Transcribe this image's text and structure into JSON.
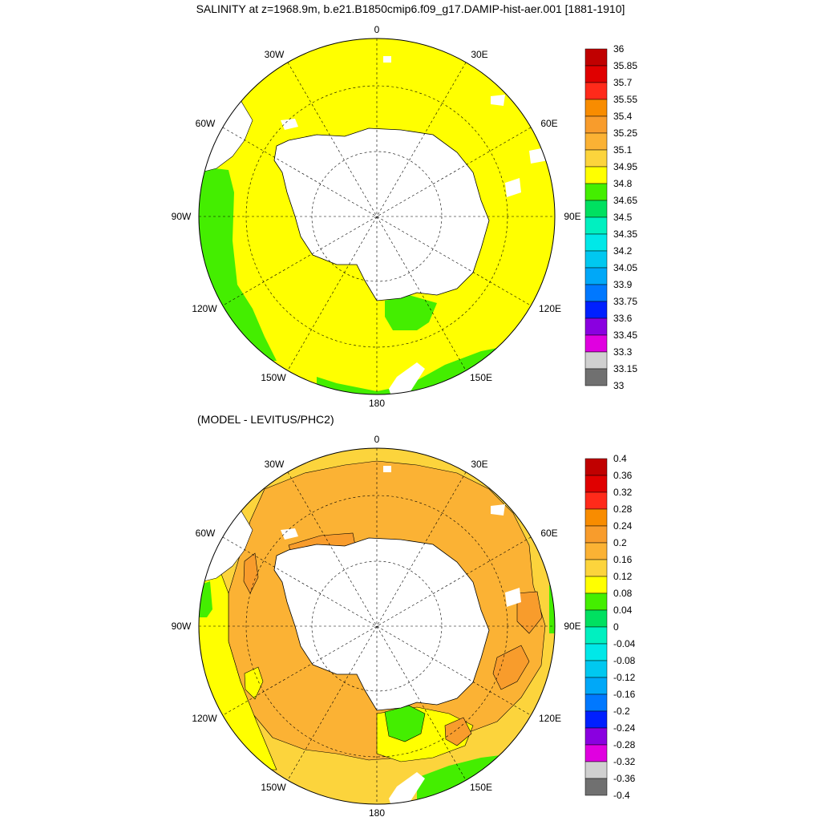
{
  "title": "SALINITY at z=1968.9m, b.e21.B1850cmip6.f09_g17.DAMIP-hist-aer.001 [1881-1910]",
  "subtitle": "(MODEL - LEVITUS/PHC2)",
  "longitude_labels": {
    "lon_0": "0",
    "lon_30e": "30E",
    "lon_60e": "60E",
    "lon_90e": "90E",
    "lon_120e": "120E",
    "lon_150e": "150E",
    "lon_180": "180",
    "lon_150w": "150W",
    "lon_120w": "120W",
    "lon_90w": "90W",
    "lon_60w": "60W",
    "lon_30w": "30W"
  },
  "colors": {
    "ocean_top": "#ffff00",
    "low_top": "#44ee00",
    "ocean_bottom": "#fcd43c",
    "bottom_mid": "#fbb234",
    "bottom_high": "#f89630",
    "land": "#ffffff"
  },
  "colorbar_top": {
    "labels": [
      "36",
      "35.85",
      "35.7",
      "35.55",
      "35.4",
      "35.25",
      "35.1",
      "34.95",
      "34.8",
      "34.65",
      "34.5",
      "34.35",
      "34.2",
      "34.05",
      "33.9",
      "33.75",
      "33.6",
      "33.45",
      "33.3",
      "33.15",
      "33"
    ],
    "colors": [
      "#c00000",
      "#e00000",
      "#ff2a1a",
      "#f88c00",
      "#f89c2c",
      "#fbb234",
      "#fcd43c",
      "#ffff00",
      "#44ee00",
      "#00e060",
      "#00f0c0",
      "#00e8e8",
      "#00c8f0",
      "#00a8f8",
      "#0078ff",
      "#0020ff",
      "#8a00e0",
      "#e000e0",
      "#d0d0d0",
      "#707070"
    ]
  },
  "colorbar_bottom": {
    "labels": [
      "0.4",
      "0.36",
      "0.32",
      "0.28",
      "0.24",
      "0.2",
      "0.16",
      "0.12",
      "0.08",
      "0.04",
      "0",
      "-0.04",
      "-0.08",
      "-0.12",
      "-0.16",
      "-0.2",
      "-0.24",
      "-0.28",
      "-0.32",
      "-0.36",
      "-0.4"
    ],
    "colors": [
      "#c00000",
      "#e00000",
      "#ff2a1a",
      "#f88c00",
      "#f89c2c",
      "#fbb234",
      "#fcd43c",
      "#ffff00",
      "#44ee00",
      "#00e060",
      "#00f0c0",
      "#00e8e8",
      "#00c8f0",
      "#00a8f8",
      "#0078ff",
      "#0020ff",
      "#8a00e0",
      "#e000e0",
      "#d0d0d0",
      "#707070"
    ]
  }
}
